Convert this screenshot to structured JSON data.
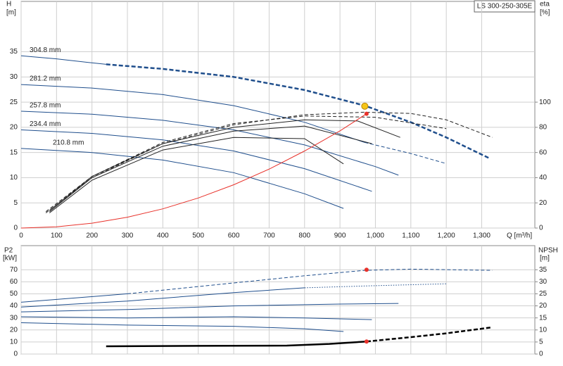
{
  "chart_data": [
    {
      "type": "line",
      "title": "LS 300-250-305E",
      "y_label": "H",
      "y_unit": "[m]",
      "y2_label": "eta",
      "y2_unit": "[%]",
      "x_label": "Q [m³/h]",
      "xlim": [
        0,
        1450
      ],
      "xticks": [
        0,
        100,
        200,
        300,
        400,
        500,
        600,
        700,
        800,
        900,
        {
          "value": 1000,
          "label": "1,000"
        },
        {
          "value": 1100,
          "label": "1,100"
        },
        {
          "value": 1200,
          "label": "1,200"
        },
        {
          "value": 1300,
          "label": "1,300"
        }
      ],
      "ylim": [
        0,
        45
      ],
      "yticks": [
        0,
        5,
        10,
        15,
        20,
        25,
        30,
        35
      ],
      "y2lim": [
        0,
        180
      ],
      "y2ticks": [
        0,
        20,
        40,
        60,
        80,
        100
      ],
      "grid": true,
      "show_xtick_labels": true,
      "series": [
        {
          "name": "304.8 mm",
          "color": "#1f4e8c",
          "style": "solid",
          "x": [
            0,
            100,
            200,
            240
          ],
          "values": [
            34.2,
            33.6,
            32.8,
            32.5
          ]
        },
        {
          "color": "#1f4e8c",
          "style": "dashed-bold",
          "x": [
            240,
            400,
            600,
            800,
            970,
            1100,
            1200,
            1320
          ],
          "values": [
            32.5,
            31.6,
            30,
            27.4,
            24.3,
            21,
            18,
            13.9
          ]
        },
        {
          "name": "281.2 mm",
          "color": "#1f4e8c",
          "style": "solid",
          "x": [
            0,
            200,
            400,
            600,
            800,
            970
          ],
          "values": [
            28.5,
            27.8,
            26.5,
            24.3,
            21,
            17
          ]
        },
        {
          "color": "#1f4e8c",
          "style": "dashed",
          "x": [
            970,
            1100,
            1200
          ],
          "values": [
            17,
            14.8,
            12.8
          ]
        },
        {
          "name": "257.8 mm",
          "color": "#1f4e8c",
          "style": "solid",
          "x": [
            0,
            200,
            400,
            600,
            800,
            1000,
            1065
          ],
          "values": [
            23.2,
            22.6,
            21.4,
            19.5,
            16.5,
            12.2,
            10.5
          ]
        },
        {
          "name": "234.4 mm",
          "color": "#1f4e8c",
          "style": "solid",
          "x": [
            0,
            200,
            400,
            600,
            800,
            990
          ],
          "values": [
            19.5,
            18.8,
            17.5,
            15.3,
            11.8,
            7.3
          ]
        },
        {
          "name": "210.8 mm",
          "color": "#1f4e8c",
          "style": "solid",
          "x": [
            0,
            200,
            400,
            600,
            800,
            910
          ],
          "values": [
            15.8,
            15,
            13.5,
            11,
            6.8,
            3.9
          ]
        },
        {
          "color": "#222222",
          "style": "dashed",
          "axis": "y2",
          "x": [
            70,
            200,
            400,
            600,
            800,
            970,
            1100,
            1200,
            1330
          ],
          "values": [
            12,
            40,
            67,
            82,
            90,
            92,
            91,
            86,
            72
          ]
        },
        {
          "color": "#222222",
          "style": "dashed",
          "axis": "y2",
          "x": [
            70,
            200,
            400,
            600,
            800,
            1000,
            1200
          ],
          "values": [
            13,
            41,
            68,
            83,
            89,
            88,
            79
          ]
        },
        {
          "color": "#222222",
          "style": "solid",
          "axis": "y2",
          "x": [
            80,
            200,
            400,
            600,
            800,
            950,
            1070
          ],
          "values": [
            14,
            41,
            67,
            80,
            86,
            85,
            72
          ]
        },
        {
          "color": "#222222",
          "style": "solid",
          "axis": "y2",
          "x": [
            80,
            200,
            400,
            600,
            800,
            990
          ],
          "values": [
            13,
            40,
            65,
            77,
            81,
            67
          ]
        },
        {
          "color": "#222222",
          "style": "solid",
          "axis": "y2",
          "x": [
            80,
            200,
            400,
            600,
            800,
            910
          ],
          "values": [
            12,
            38,
            62,
            72,
            71,
            51
          ]
        },
        {
          "color": "#e8312a",
          "style": "solid",
          "x": [
            0,
            100,
            200,
            300,
            400,
            500,
            600,
            700,
            800,
            900,
            975
          ],
          "values": [
            0,
            0.24,
            0.96,
            2.15,
            3.82,
            5.97,
            8.6,
            11.7,
            15.3,
            19.3,
            22.7
          ]
        }
      ],
      "points": [
        {
          "x": 975,
          "y": 22.7,
          "color": "#e8312a"
        },
        {
          "x": 970,
          "y": 24.2,
          "color": "#f5c518"
        }
      ]
    },
    {
      "type": "line",
      "y_label": "P2",
      "y_unit": "[kW]",
      "y2_label": "NPSH",
      "y2_unit": "[m]",
      "xlim": [
        0,
        1450
      ],
      "xticks": [
        0,
        100,
        200,
        300,
        400,
        500,
        600,
        700,
        800,
        900,
        1000,
        1100,
        1200,
        1300
      ],
      "ylim": [
        0,
        90
      ],
      "yticks": [
        0,
        10,
        20,
        30,
        40,
        50,
        60,
        70
      ],
      "y2lim": [
        0,
        45
      ],
      "y2ticks": [
        0,
        5,
        10,
        15,
        20,
        25,
        30,
        35
      ],
      "grid": true,
      "show_xtick_labels": false,
      "series": [
        {
          "color": "#1f4e8c",
          "style": "solid",
          "x": [
            0,
            300
          ],
          "values": [
            43,
            50
          ]
        },
        {
          "color": "#1f4e8c",
          "style": "dashed",
          "x": [
            300,
            600,
            800,
            970,
            1100,
            1330
          ],
          "values": [
            50,
            59,
            65,
            69.5,
            70.5,
            69.5
          ]
        },
        {
          "color": "#1f4e8c",
          "style": "solid",
          "x": [
            0,
            300,
            600,
            800
          ],
          "values": [
            39,
            44,
            51,
            55
          ]
        },
        {
          "color": "#1f4e8c",
          "style": "dotted",
          "x": [
            800,
            970,
            1200
          ],
          "values": [
            55,
            56.5,
            58.3
          ]
        },
        {
          "color": "#1f4e8c",
          "style": "solid",
          "x": [
            0,
            300,
            600,
            900,
            1065
          ],
          "values": [
            35,
            37,
            40,
            41.5,
            42
          ]
        },
        {
          "color": "#1f4e8c",
          "style": "solid",
          "x": [
            0,
            300,
            600,
            800,
            990
          ],
          "values": [
            31,
            30,
            31,
            30,
            28.6
          ]
        },
        {
          "color": "#1f4e8c",
          "style": "solid",
          "x": [
            0,
            300,
            600,
            800,
            910
          ],
          "values": [
            26,
            24,
            23,
            21,
            18.7
          ]
        },
        {
          "color": "#000000",
          "style": "solid-bold",
          "axis": "y2",
          "x": [
            240,
            500,
            750,
            870,
            975
          ],
          "values": [
            3.2,
            3.4,
            3.5,
            4.2,
            5.2
          ]
        },
        {
          "color": "#000000",
          "style": "dashed-bold",
          "axis": "y2",
          "x": [
            975,
            1100,
            1200,
            1330
          ],
          "values": [
            5.2,
            7,
            8.6,
            11.1
          ]
        }
      ],
      "points": [
        {
          "x": 975,
          "y": 70,
          "color": "#e8312a"
        },
        {
          "x": 975,
          "y": 5.2,
          "color": "#e8312a",
          "axis": "y2"
        }
      ]
    }
  ]
}
